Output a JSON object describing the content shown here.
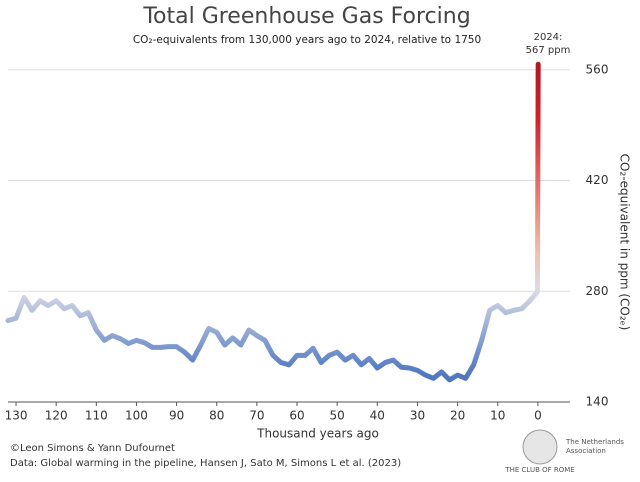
{
  "chart_data": {
    "type": "line",
    "title": "Total Greenhouse Gas Forcing",
    "subtitle": "CO₂-equivalents from 130,000 years ago to 2024, relative to 1750",
    "annotation": [
      "2024:",
      "567 ppm"
    ],
    "xlabel": "Thousand years ago",
    "ylabel": "CO₂-equivalent in ppm (CO₂ₑ)",
    "credits": [
      "©Leon Simons & Yann Dufournet",
      "Data: Global warming in the pipeline, Hansen J, Sato M, Simons L et al. (2023)"
    ],
    "logo": [
      "THE CLUB OF ROME",
      "The Netherlands",
      "Association"
    ],
    "x": [
      132,
      130,
      128,
      126,
      124,
      122,
      120,
      118,
      116,
      114,
      112,
      110,
      108,
      106,
      104,
      102,
      100,
      98,
      96,
      94,
      92,
      90,
      88,
      86,
      84,
      82,
      80,
      78,
      76,
      74,
      72,
      70,
      68,
      66,
      64,
      62,
      60,
      58,
      56,
      54,
      52,
      50,
      48,
      46,
      44,
      42,
      40,
      38,
      36,
      34,
      32,
      30,
      28,
      26,
      24,
      22,
      20,
      18,
      16,
      14,
      12,
      10,
      8,
      6,
      4,
      2,
      0.5,
      0.1,
      -0.07
    ],
    "values": [
      243,
      246,
      272,
      256,
      268,
      262,
      268,
      258,
      262,
      249,
      253,
      231,
      218,
      224,
      220,
      214,
      218,
      215,
      209,
      209,
      210,
      210,
      203,
      193,
      212,
      233,
      228,
      212,
      221,
      212,
      231,
      224,
      218,
      199,
      190,
      187,
      199,
      199,
      208,
      190,
      199,
      203,
      193,
      199,
      187,
      195,
      183,
      190,
      193,
      184,
      183,
      180,
      174,
      170,
      178,
      168,
      174,
      170,
      187,
      218,
      256,
      262,
      253,
      256,
      258,
      268,
      277,
      280,
      567
    ],
    "colors": [
      "#3a63b6",
      "#5a80c4",
      "#dadbe6",
      "#efc2b0",
      "#d2232a",
      "#a8141b"
    ],
    "xlim": [
      132,
      -8
    ],
    "ylim": [
      140,
      585
    ],
    "xticks": [
      130,
      120,
      110,
      100,
      90,
      80,
      70,
      60,
      50,
      40,
      30,
      20,
      10,
      0
    ],
    "yticks": [
      140,
      280,
      420,
      560
    ],
    "grid": true
  }
}
